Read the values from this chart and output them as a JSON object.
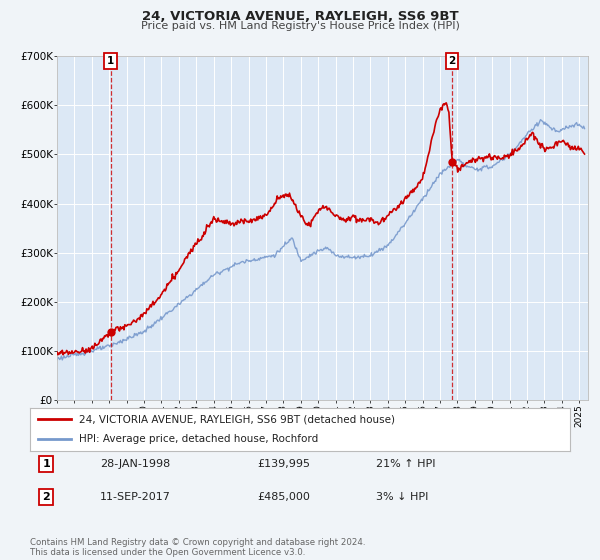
{
  "title": "24, VICTORIA AVENUE, RAYLEIGH, SS6 9BT",
  "subtitle": "Price paid vs. HM Land Registry's House Price Index (HPI)",
  "background_color": "#f0f4f8",
  "plot_background": "#dce8f5",
  "grid_color": "#ffffff",
  "red_line_color": "#cc0000",
  "blue_line_color": "#7799cc",
  "marker1_date": 1998.08,
  "marker1_value": 139995,
  "marker2_date": 2017.7,
  "marker2_value": 485000,
  "legend_line1": "24, VICTORIA AVENUE, RAYLEIGH, SS6 9BT (detached house)",
  "legend_line2": "HPI: Average price, detached house, Rochford",
  "row1_date": "28-JAN-1998",
  "row1_price": "£139,995",
  "row1_hpi": "21% ↑ HPI",
  "row2_date": "11-SEP-2017",
  "row2_price": "£485,000",
  "row2_hpi": "3% ↓ HPI",
  "footer_line1": "Contains HM Land Registry data © Crown copyright and database right 2024.",
  "footer_line2": "This data is licensed under the Open Government Licence v3.0.",
  "xmin": 1995.0,
  "xmax": 2025.5,
  "ymin": 0,
  "ymax": 700000
}
